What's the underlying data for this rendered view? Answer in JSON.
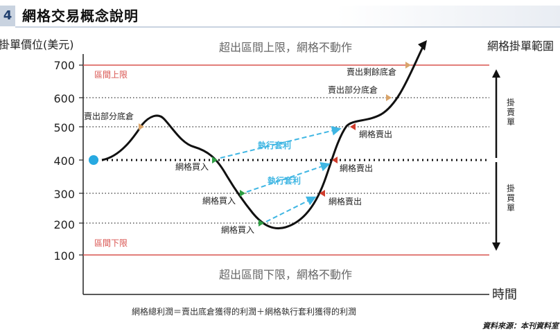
{
  "header": {
    "number": "4",
    "title": "網格交易概念說明"
  },
  "axis": {
    "y_label": "掛單價位(美元)",
    "x_label": "時間",
    "y_ticks": [
      "700",
      "600",
      "500",
      "400",
      "300",
      "200",
      "100"
    ]
  },
  "bounds": {
    "upper_label": "區間上限",
    "lower_label": "區間下限",
    "upper_note": "超出區間上限，網格不動作",
    "lower_note": "超出區間下限，網格不動作"
  },
  "range": {
    "label": "網格掛單範圍",
    "sell_side": "掛賣單",
    "buy_side": "掛買單"
  },
  "annotations": {
    "sell_partial_left": "賣出部分底倉",
    "sell_partial_right": "賣出部分底倉",
    "sell_remaining": "賣出剩餘底倉",
    "buy_1": "網格買入",
    "buy_2": "網格買入",
    "buy_3": "網格買入",
    "sell_1": "網格賣出",
    "sell_2": "網格賣出",
    "sell_3": "網格賣出",
    "arb_1": "執行套利",
    "arb_2": "執行套利"
  },
  "footer": {
    "formula": "網格總利潤＝賣出底倉獲得的利潤＋網格執行套利獲得的利潤",
    "source": "資料來源：本刊資料室"
  },
  "colors": {
    "bound_line": "#d9534f",
    "arb_arrow": "#3fb6e3",
    "buy_marker": "#2e9e44",
    "sell_marker": "#d03c2c",
    "base_marker": "#d9a46a",
    "start_dot": "#27a9e1"
  }
}
